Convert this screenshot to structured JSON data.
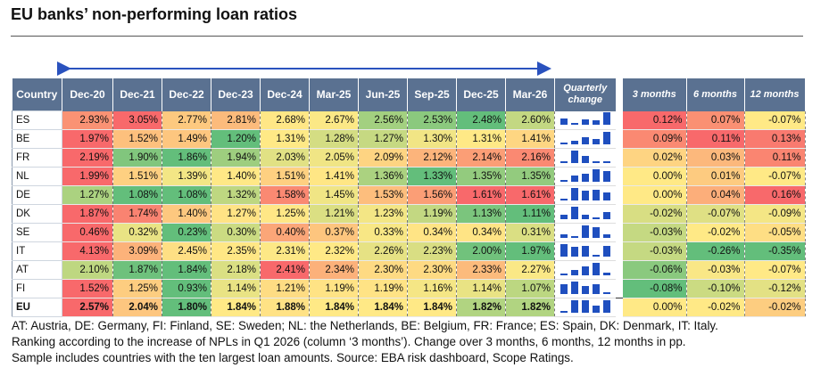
{
  "title": "EU banks’ non-performing loan ratios",
  "chart_data": {
    "type": "table",
    "columns": {
      "country": "Country",
      "periods": [
        "Dec-20",
        "Dec-21",
        "Dec-22",
        "Dec-23",
        "Dec-24",
        "Mar-25",
        "Jun-25",
        "Sep-25",
        "Dec-25",
        "Mar-26"
      ],
      "quarterly": "Quarterly change",
      "changes": [
        "3 months",
        "6 months",
        "12 months"
      ]
    },
    "rows": [
      {
        "country": "ES",
        "values": [
          "2.93%",
          "3.05%",
          "2.77%",
          "2.81%",
          "2.68%",
          "2.67%",
          "2.56%",
          "2.53%",
          "2.48%",
          "2.60%"
        ],
        "changes": [
          "0.12%",
          "0.07%",
          "-0.07%"
        ]
      },
      {
        "country": "BE",
        "values": [
          "1.97%",
          "1.52%",
          "1.49%",
          "1.20%",
          "1.31%",
          "1.28%",
          "1.27%",
          "1.30%",
          "1.31%",
          "1.41%"
        ],
        "changes": [
          "0.09%",
          "0.11%",
          "0.13%"
        ]
      },
      {
        "country": "FR",
        "values": [
          "2.19%",
          "1.90%",
          "1.86%",
          "1.94%",
          "2.03%",
          "2.05%",
          "2.09%",
          "2.12%",
          "2.14%",
          "2.16%"
        ],
        "changes": [
          "0.02%",
          "0.03%",
          "0.11%"
        ]
      },
      {
        "country": "NL",
        "values": [
          "1.99%",
          "1.51%",
          "1.39%",
          "1.40%",
          "1.51%",
          "1.41%",
          "1.36%",
          "1.33%",
          "1.35%",
          "1.35%"
        ],
        "changes": [
          "0.00%",
          "0.01%",
          "-0.07%"
        ]
      },
      {
        "country": "DE",
        "values": [
          "1.27%",
          "1.08%",
          "1.08%",
          "1.32%",
          "1.58%",
          "1.45%",
          "1.53%",
          "1.56%",
          "1.61%",
          "1.61%"
        ],
        "changes": [
          "0.00%",
          "0.04%",
          "0.16%"
        ]
      },
      {
        "country": "DK",
        "values": [
          "1.87%",
          "1.74%",
          "1.40%",
          "1.27%",
          "1.25%",
          "1.21%",
          "1.23%",
          "1.19%",
          "1.13%",
          "1.11%"
        ],
        "changes": [
          "-0.02%",
          "-0.07%",
          "-0.09%"
        ]
      },
      {
        "country": "SE",
        "values": [
          "0.46%",
          "0.32%",
          "0.23%",
          "0.30%",
          "0.40%",
          "0.37%",
          "0.33%",
          "0.34%",
          "0.34%",
          "0.31%"
        ],
        "changes": [
          "-0.03%",
          "-0.02%",
          "-0.05%"
        ]
      },
      {
        "country": "IT",
        "values": [
          "4.13%",
          "3.09%",
          "2.45%",
          "2.35%",
          "2.31%",
          "2.32%",
          "2.26%",
          "2.23%",
          "2.00%",
          "1.97%"
        ],
        "changes": [
          "-0.03%",
          "-0.26%",
          "-0.35%"
        ]
      },
      {
        "country": "AT",
        "values": [
          "2.10%",
          "1.87%",
          "1.84%",
          "2.18%",
          "2.41%",
          "2.34%",
          "2.30%",
          "2.30%",
          "2.33%",
          "2.27%"
        ],
        "changes": [
          "-0.06%",
          "-0.03%",
          "-0.07%"
        ]
      },
      {
        "country": "FI",
        "values": [
          "1.52%",
          "1.25%",
          "0.93%",
          "1.14%",
          "1.21%",
          "1.19%",
          "1.19%",
          "1.16%",
          "1.14%",
          "1.07%"
        ],
        "changes": [
          "-0.08%",
          "-0.10%",
          "-0.12%"
        ]
      },
      {
        "country": "EU",
        "values": [
          "2.57%",
          "2.04%",
          "1.80%",
          "1.84%",
          "1.88%",
          "1.84%",
          "1.84%",
          "1.84%",
          "1.82%",
          "1.82%"
        ],
        "changes": [
          "0.00%",
          "-0.02%",
          "-0.02%"
        ]
      }
    ],
    "colors": {
      "header": "#5a7191",
      "spark": "#1f4fbf",
      "arrow": "#2a52be",
      "low": "#63be7b",
      "mid": "#ffe986",
      "high": "#f8696b"
    }
  },
  "notes": [
    "AT: Austria, DE: Germany, FI: Finland, SE: Sweden; NL: the Netherlands, BE: Belgium, FR: France; ES: Spain, DK: Denmark, IT: Italy.",
    "Ranking according to the increase of NPLs in Q1 2026 (column ‘3 months’). Change over 3 months, 6 months, 12 months in pp.",
    "Sample includes countries with the ten largest loan amounts. Source: EBA risk dashboard, Scope Ratings."
  ]
}
